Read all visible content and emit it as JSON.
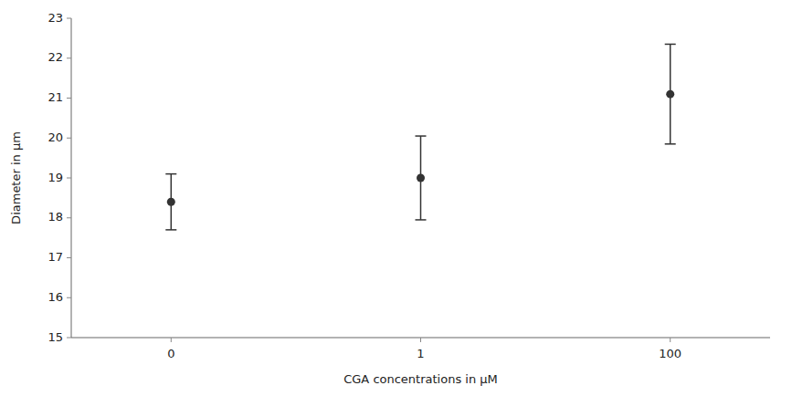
{
  "chart_data": {
    "type": "scatter",
    "x_label": "CGA concentrations in μM",
    "y_label": "Diameter in μm",
    "categories": [
      "0",
      "1",
      "100"
    ],
    "values": [
      18.4,
      19.0,
      21.1
    ],
    "errors": [
      0.7,
      1.05,
      1.25
    ],
    "color": "#333333",
    "marker": "circle",
    "line_style": "none",
    "ylim": [
      15,
      23
    ],
    "yticks": [
      15,
      16,
      17,
      18,
      19,
      20,
      21,
      22,
      23
    ],
    "grid": false
  }
}
